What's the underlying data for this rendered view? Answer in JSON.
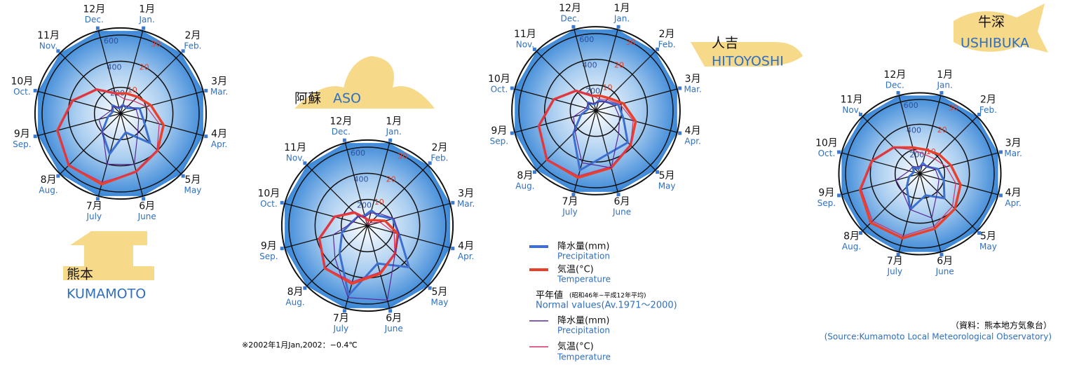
{
  "chart_data": [
    {
      "type": "radar",
      "title": "熊本",
      "subtitle": "KUMAMOTO",
      "categories": [
        "1月",
        "2月",
        "3月",
        "4月",
        "5月",
        "6月",
        "7月",
        "8月",
        "9月",
        "10月",
        "11月",
        "12月"
      ],
      "categories_en": [
        "Jan.",
        "Feb.",
        "Mar.",
        "Apr.",
        "May",
        "June",
        "July",
        "Aug.",
        "Sep.",
        "Oct.",
        "Nov.",
        "Dec."
      ],
      "rlim": [
        0,
        600
      ],
      "rticks": [
        200,
        400,
        600
      ],
      "r2lim": [
        0,
        30
      ],
      "r2ticks": [
        10,
        20,
        30
      ],
      "series": [
        {
          "name": "降水量(mm)",
          "color": "#3b6fd0",
          "values": [
            70,
            60,
            150,
            180,
            320,
            150,
            320,
            200,
            100,
            60,
            90,
            40
          ]
        },
        {
          "name": "気温(°C)",
          "color": "#e8402a",
          "axis": "r2",
          "values": [
            8,
            9,
            12,
            17,
            20,
            23,
            28,
            28,
            25,
            19,
            13,
            8
          ]
        },
        {
          "name": "降水量(mm)",
          "color": "#5a2a9a",
          "values": [
            57,
            83,
            123,
            143,
            187,
            404,
            401,
            194,
            172,
            79,
            77,
            50
          ]
        },
        {
          "name": "気温(°C)",
          "color": "#d0306a",
          "axis": "r2",
          "values": [
            5.7,
            6.9,
            10.2,
            15.3,
            19.7,
            23.2,
            27.2,
            28,
            24.8,
            19,
            13.1,
            7.9
          ]
        }
      ]
    },
    {
      "type": "radar",
      "title": "阿蘇",
      "subtitle": "ASO",
      "categories": [
        "1月",
        "2月",
        "3月",
        "4月",
        "5月",
        "6月",
        "7月",
        "8月",
        "9月",
        "10月",
        "11月",
        "12月"
      ],
      "categories_en": [
        "Jan.",
        "Feb.",
        "Mar.",
        "Apr.",
        "May",
        "June",
        "July",
        "Aug.",
        "Sep.",
        "Oct.",
        "Nov.",
        "Dec."
      ],
      "rlim": [
        0,
        600
      ],
      "rticks": [
        200,
        400,
        600
      ],
      "r2lim": [
        0,
        30
      ],
      "r2ticks": [
        10,
        20,
        30
      ],
      "series": [
        {
          "name": "降水量(mm)",
          "color": "#3b6fd0",
          "values": [
            120,
            110,
            200,
            250,
            450,
            300,
            550,
            300,
            200,
            120,
            100,
            80
          ]
        },
        {
          "name": "気温(°C)",
          "color": "#e8402a",
          "axis": "r2",
          "values": [
            2,
            3,
            7,
            12,
            15,
            19,
            23,
            23,
            19,
            13,
            7,
            3
          ]
        },
        {
          "name": "降水量(mm)",
          "color": "#5a2a9a",
          "values": [
            100,
            130,
            210,
            250,
            300,
            590,
            570,
            350,
            270,
            110,
            100,
            70
          ]
        },
        {
          "name": "気温(°C)",
          "color": "#d0306a",
          "axis": "r2",
          "values": [
            0.4,
            1.5,
            5,
            10.6,
            14.8,
            18.4,
            22.2,
            22.8,
            19.2,
            13,
            7.6,
            2.7
          ]
        }
      ]
    },
    {
      "type": "radar",
      "title": "人吉",
      "subtitle": "HITOYOSHI",
      "categories": [
        "1月",
        "2月",
        "3月",
        "4月",
        "5月",
        "6月",
        "7月",
        "8月",
        "9月",
        "10月",
        "11月",
        "12月"
      ],
      "categories_en": [
        "Jan.",
        "Feb.",
        "Mar.",
        "Apr.",
        "May",
        "June",
        "July",
        "Aug.",
        "Sep.",
        "Oct.",
        "Nov.",
        "Dec."
      ],
      "rlim": [
        0,
        600
      ],
      "rticks": [
        200,
        400,
        600
      ],
      "r2lim": [
        0,
        30
      ],
      "r2ticks": [
        10,
        20,
        30
      ],
      "series": [
        {
          "name": "降水量(mm)",
          "color": "#3b6fd0",
          "values": [
            80,
            100,
            180,
            220,
            350,
            350,
            480,
            250,
            120,
            60,
            90,
            50
          ]
        },
        {
          "name": "気温(°C)",
          "color": "#e8402a",
          "axis": "r2",
          "values": [
            6,
            7,
            11,
            16,
            19,
            23,
            27,
            27,
            23,
            17,
            11,
            6
          ]
        },
        {
          "name": "降水量(mm)",
          "color": "#5a2a9a",
          "values": [
            70,
            100,
            150,
            190,
            250,
            460,
            420,
            230,
            180,
            80,
            80,
            60
          ]
        },
        {
          "name": "気温(°C)",
          "color": "#d0306a",
          "axis": "r2",
          "values": [
            4.7,
            6.1,
            9.7,
            15,
            19.1,
            22.5,
            26.3,
            26.8,
            23.1,
            17,
            11,
            6.2
          ]
        }
      ]
    },
    {
      "type": "radar",
      "title": "牛深",
      "subtitle": "USHIBUKA",
      "categories": [
        "1月",
        "2月",
        "3月",
        "4月",
        "5月",
        "6月",
        "7月",
        "8月",
        "9月",
        "10月",
        "11月",
        "12月"
      ],
      "categories_en": [
        "Jan.",
        "Feb.",
        "Mar.",
        "Apr.",
        "May",
        "June",
        "July",
        "Aug.",
        "Sep.",
        "Oct.",
        "Nov.",
        "Dec."
      ],
      "rlim": [
        0,
        600
      ],
      "rticks": [
        200,
        400,
        600
      ],
      "r2lim": [
        0,
        30
      ],
      "r2ticks": [
        10,
        20,
        30
      ],
      "series": [
        {
          "name": "降水量(mm)",
          "color": "#3b6fd0",
          "values": [
            90,
            80,
            150,
            200,
            280,
            180,
            300,
            150,
            90,
            50,
            80,
            40
          ]
        },
        {
          "name": "気温(°C)",
          "color": "#e8402a",
          "axis": "r2",
          "values": [
            10,
            11,
            13,
            17,
            20,
            23,
            27,
            28,
            25,
            20,
            15,
            11
          ]
        },
        {
          "name": "降水量(mm)",
          "color": "#5a2a9a",
          "values": [
            70,
            90,
            130,
            160,
            200,
            370,
            300,
            200,
            200,
            90,
            80,
            60
          ]
        },
        {
          "name": "気温(°C)",
          "color": "#d0306a",
          "axis": "r2",
          "values": [
            8,
            8.5,
            11,
            15,
            18.6,
            22,
            26,
            27,
            24.5,
            20,
            15,
            10
          ]
        }
      ]
    }
  ],
  "legend": {
    "sublabels": [
      "Precipitation",
      "Temperature",
      "Precipitation",
      "Temperature"
    ],
    "normal_title": "平年値",
    "normal_note": "(昭和46年~平成12年平均)",
    "normal_subtitle": "Normal values(Av.1971～2000)"
  },
  "note": "※2002年1月Jan,2002：−0.4℃",
  "source": {
    "ja": "（資料：熊本地方気象台）",
    "en": "(Source:Kumamoto Local Meteorological Observatory)"
  }
}
